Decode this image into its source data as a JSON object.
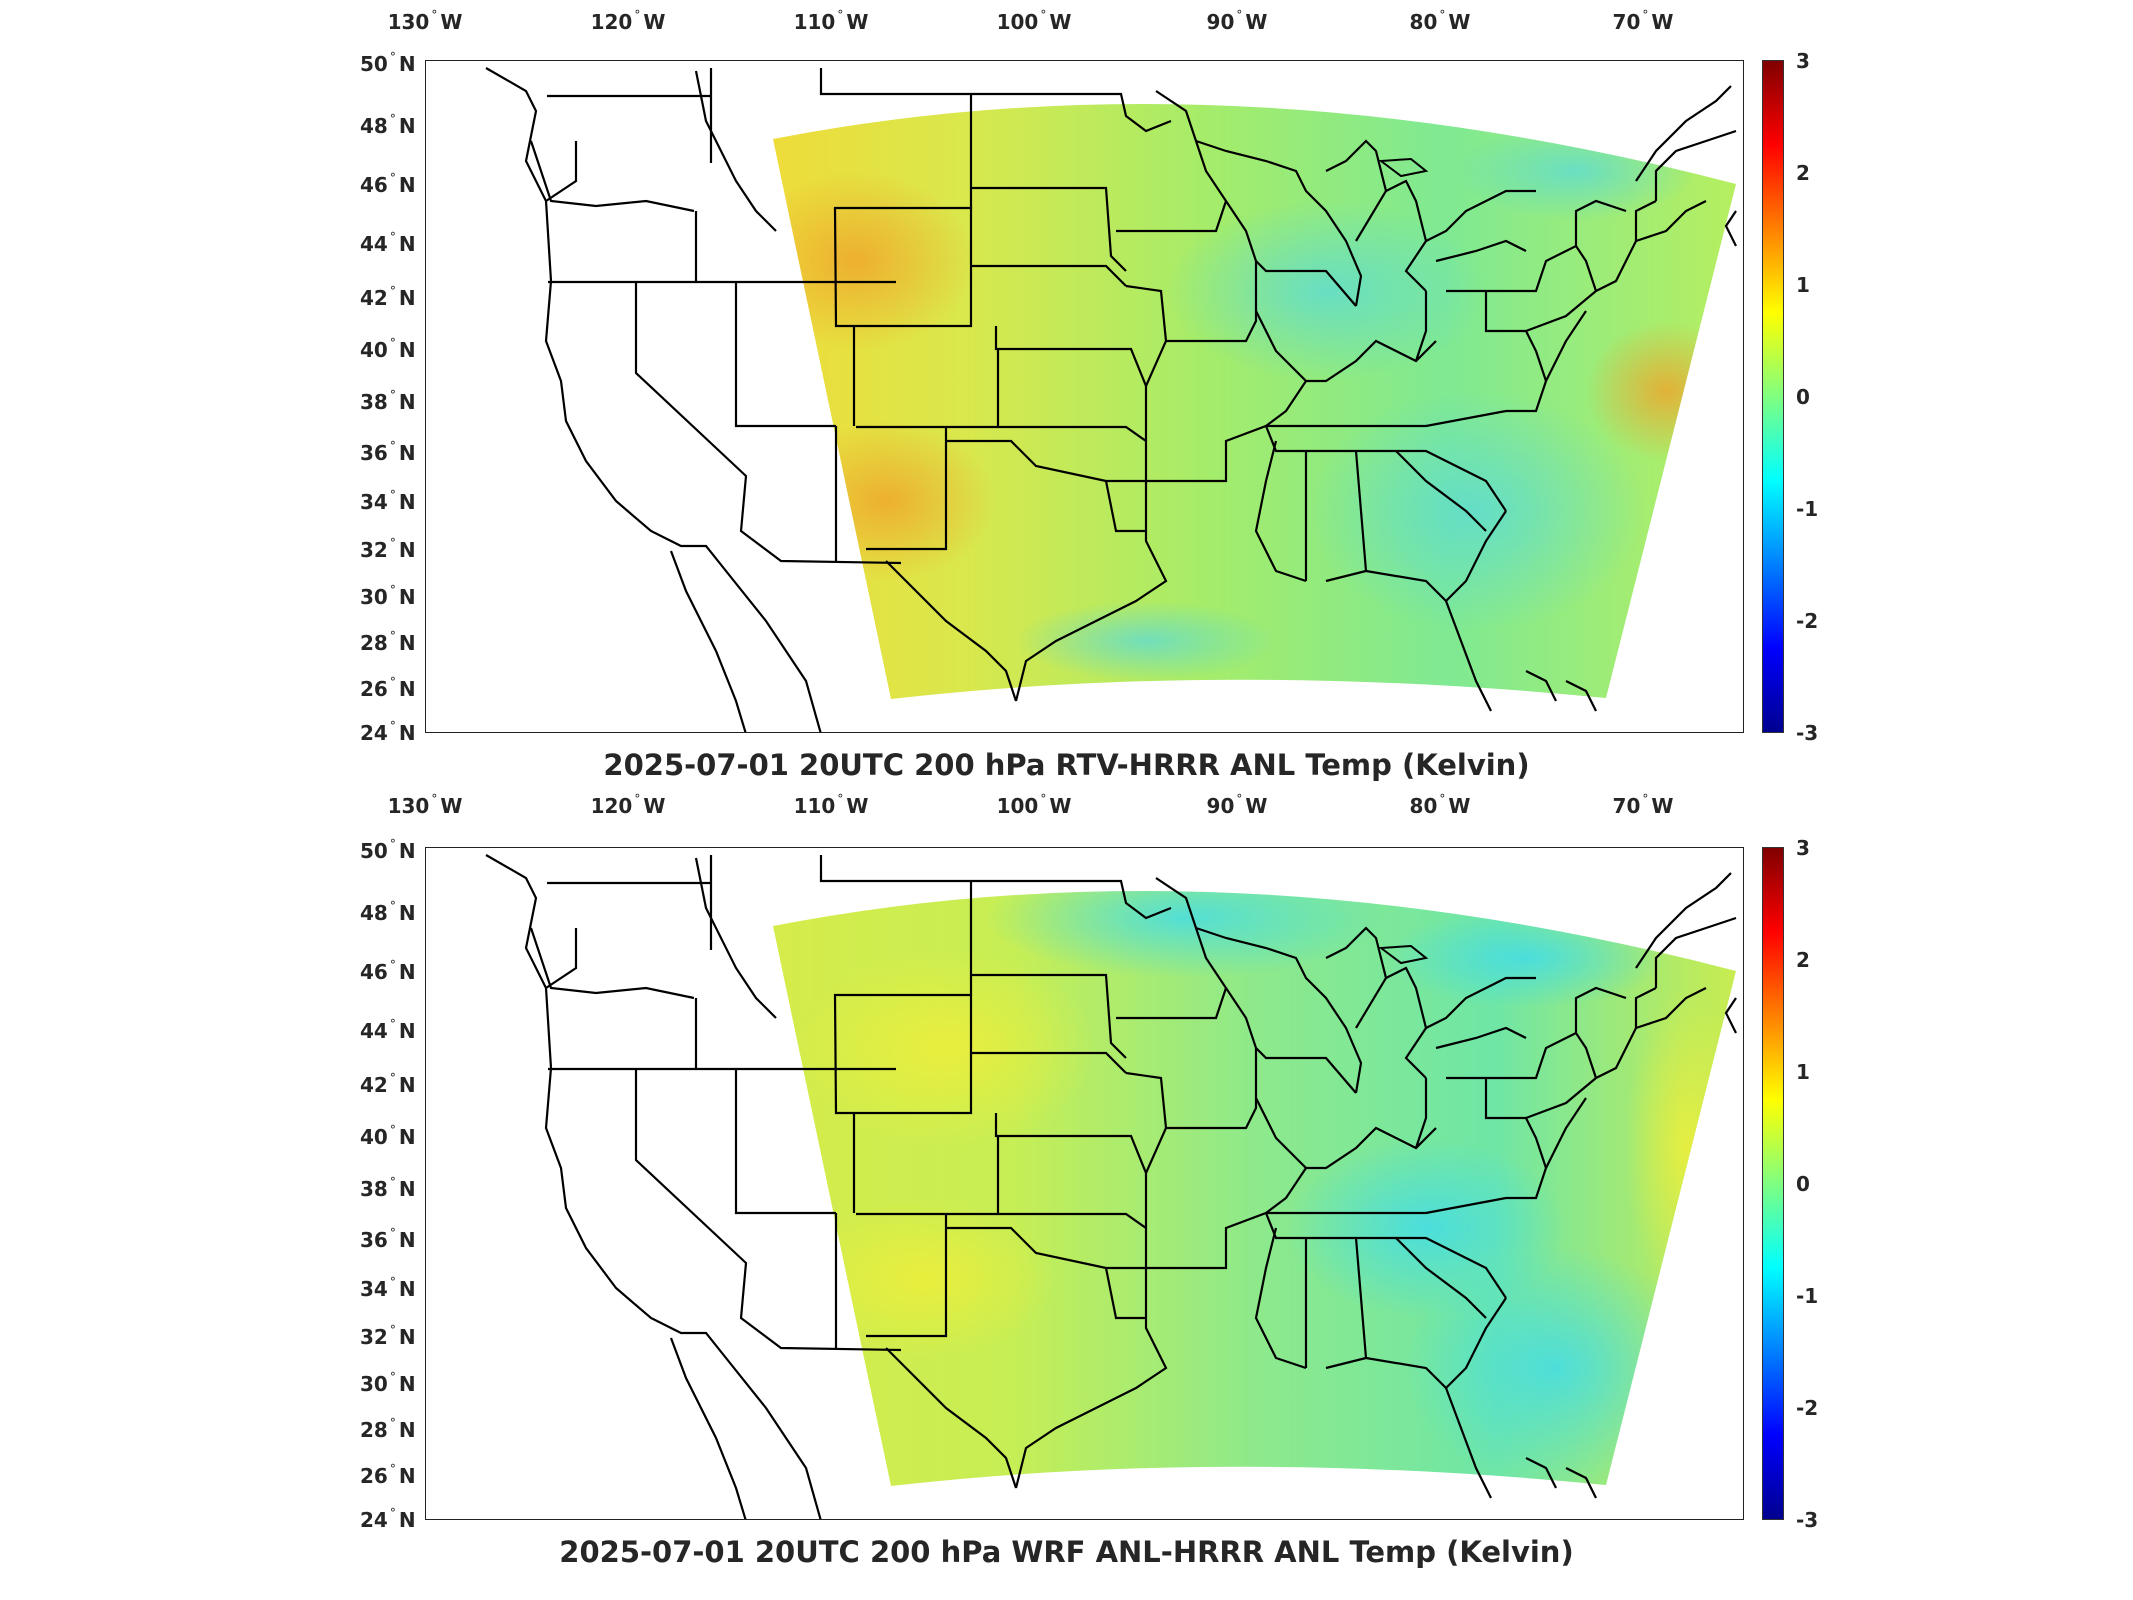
{
  "panels": [
    {
      "title": "2025-07-01 20UTC 200 hPa RTV-HRRR ANL Temp (Kelvin)",
      "field_style": "warm",
      "lon_labels": [
        {
          "deg": "130",
          "hem": "W"
        },
        {
          "deg": "120",
          "hem": "W"
        },
        {
          "deg": "110",
          "hem": "W"
        },
        {
          "deg": "100",
          "hem": "W"
        },
        {
          "deg": "90",
          "hem": "W"
        },
        {
          "deg": "80",
          "hem": "W"
        },
        {
          "deg": "70",
          "hem": "W"
        }
      ],
      "lat_labels": [
        {
          "deg": "50",
          "hem": "N"
        },
        {
          "deg": "48",
          "hem": "N"
        },
        {
          "deg": "46",
          "hem": "N"
        },
        {
          "deg": "44",
          "hem": "N"
        },
        {
          "deg": "42",
          "hem": "N"
        },
        {
          "deg": "40",
          "hem": "N"
        },
        {
          "deg": "38",
          "hem": "N"
        },
        {
          "deg": "36",
          "hem": "N"
        },
        {
          "deg": "34",
          "hem": "N"
        },
        {
          "deg": "32",
          "hem": "N"
        },
        {
          "deg": "30",
          "hem": "N"
        },
        {
          "deg": "28",
          "hem": "N"
        },
        {
          "deg": "26",
          "hem": "N"
        },
        {
          "deg": "24",
          "hem": "N"
        }
      ],
      "colorbar_ticks": [
        "3",
        "2",
        "1",
        "0",
        "-1",
        "-2",
        "-3"
      ]
    },
    {
      "title": "2025-07-01 20UTC 200 hPa WRF ANL-HRRR ANL Temp (Kelvin)",
      "field_style": "cool",
      "lon_labels": [
        {
          "deg": "130",
          "hem": "W"
        },
        {
          "deg": "120",
          "hem": "W"
        },
        {
          "deg": "110",
          "hem": "W"
        },
        {
          "deg": "100",
          "hem": "W"
        },
        {
          "deg": "90",
          "hem": "W"
        },
        {
          "deg": "80",
          "hem": "W"
        },
        {
          "deg": "70",
          "hem": "W"
        }
      ],
      "lat_labels": [
        {
          "deg": "50",
          "hem": "N"
        },
        {
          "deg": "48",
          "hem": "N"
        },
        {
          "deg": "46",
          "hem": "N"
        },
        {
          "deg": "44",
          "hem": "N"
        },
        {
          "deg": "42",
          "hem": "N"
        },
        {
          "deg": "40",
          "hem": "N"
        },
        {
          "deg": "38",
          "hem": "N"
        },
        {
          "deg": "36",
          "hem": "N"
        },
        {
          "deg": "34",
          "hem": "N"
        },
        {
          "deg": "32",
          "hem": "N"
        },
        {
          "deg": "30",
          "hem": "N"
        },
        {
          "deg": "28",
          "hem": "N"
        },
        {
          "deg": "26",
          "hem": "N"
        },
        {
          "deg": "24",
          "hem": "N"
        }
      ],
      "colorbar_ticks": [
        "3",
        "2",
        "1",
        "0",
        "-1",
        "-2",
        "-3"
      ]
    }
  ],
  "colormap": [
    "#00008f",
    "#0000ff",
    "#0080ff",
    "#00ffff",
    "#80ff80",
    "#ffff00",
    "#ff8000",
    "#ff0000",
    "#800000"
  ]
}
